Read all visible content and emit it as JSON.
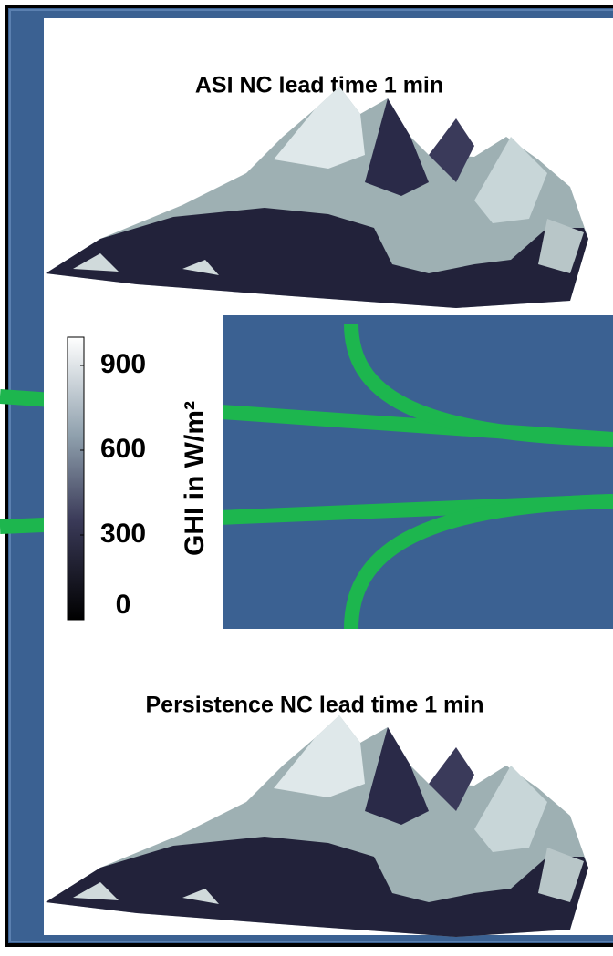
{
  "panels": [
    {
      "title": "ASI NC lead time 1 min"
    },
    {
      "title": "Persistence NC lead time 1 min"
    }
  ],
  "colorbar": {
    "label": "GHI in W/m²",
    "lim": [
      0,
      1000
    ],
    "ticks": [
      0,
      300,
      600,
      900
    ]
  }
}
